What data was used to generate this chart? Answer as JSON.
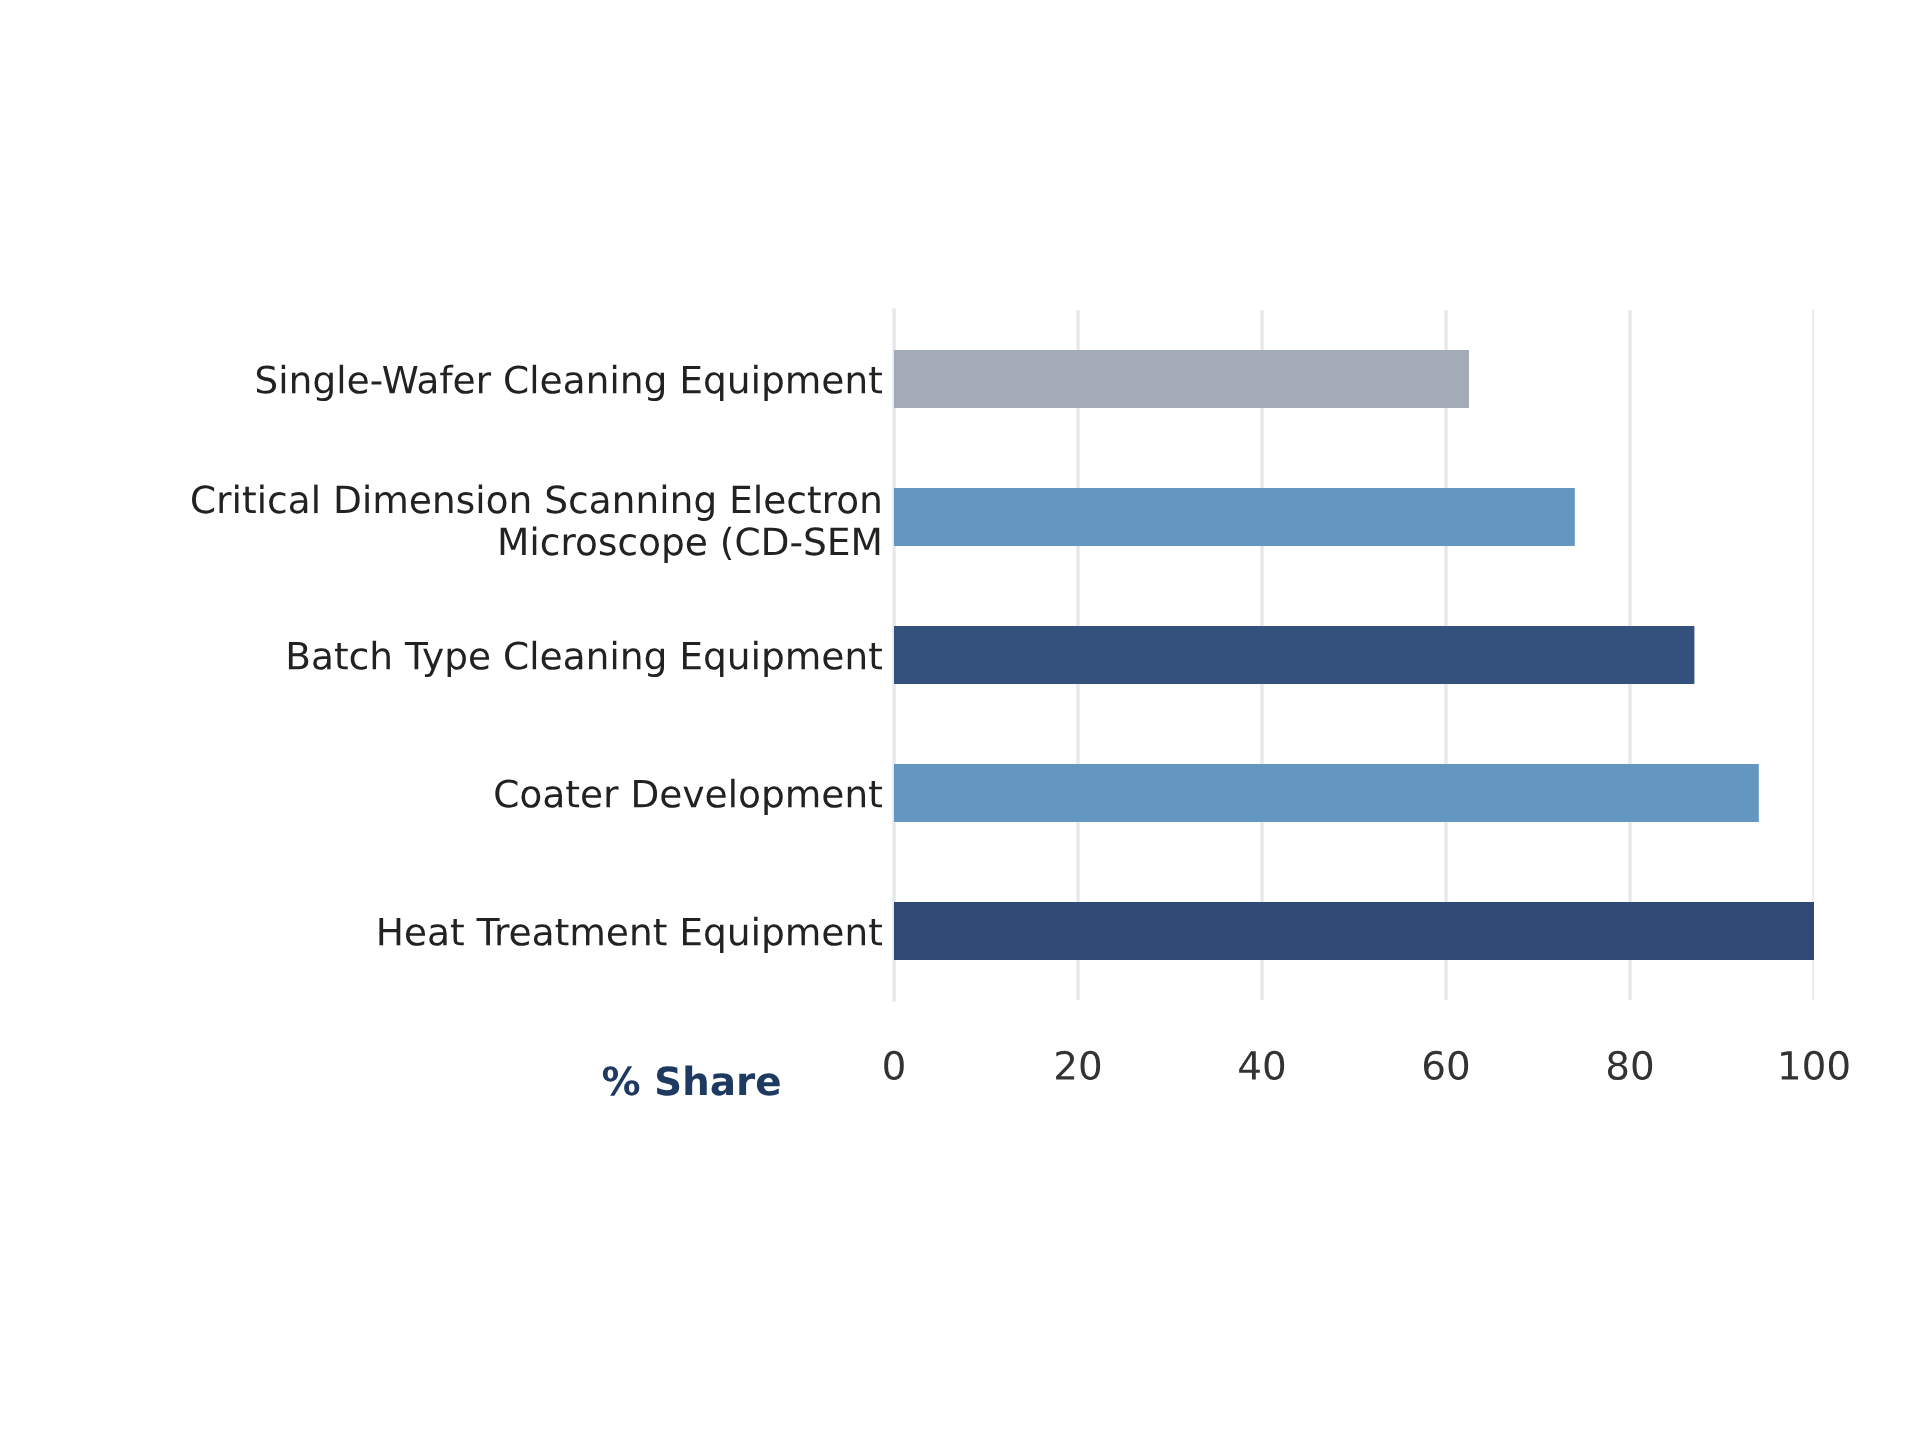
{
  "chart_data": {
    "type": "bar",
    "orientation": "horizontal",
    "xlabel": "% Share",
    "categories": [
      "Single-Wafer Cleaning Equipment",
      "Critical Dimension Scanning Electron\nMicroscope (CD-SEM",
      "Batch Type Cleaning Equipment",
      "Coater Development",
      "Heat Treatment Equipment"
    ],
    "values": [
      62.5,
      74,
      87,
      94,
      100
    ],
    "colors": [
      "#a3acb6",
      "#6496c2",
      "#34507d",
      "#6496c2",
      "#2f4a74"
    ],
    "xlim": [
      0,
      100
    ],
    "xticks": [
      0,
      20,
      40,
      60,
      80,
      100
    ],
    "grid": "x"
  }
}
